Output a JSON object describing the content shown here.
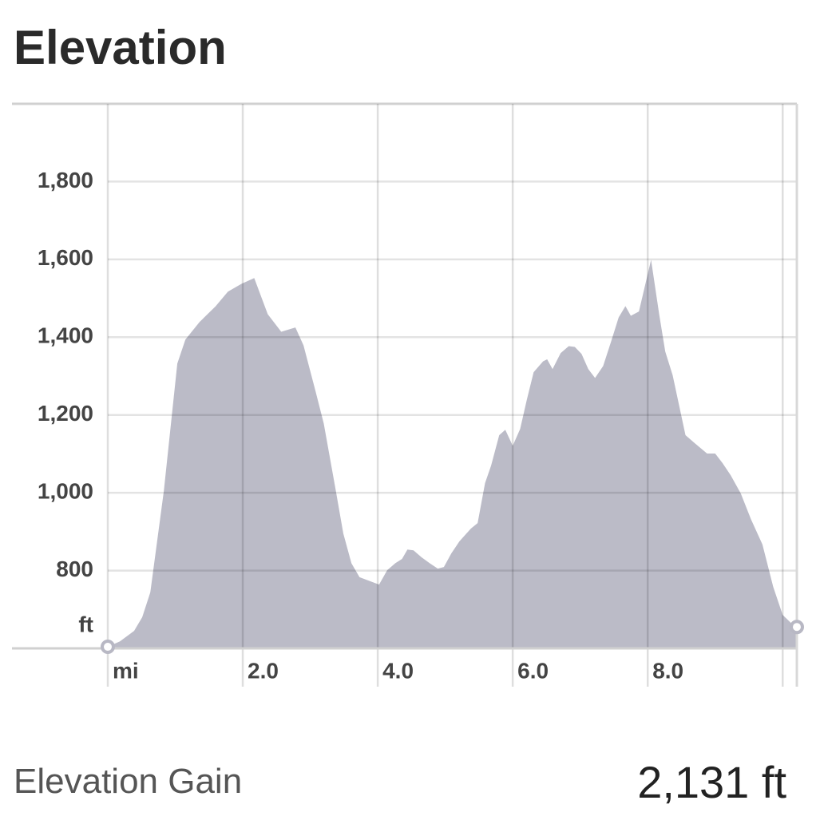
{
  "chart_data": {
    "type": "area",
    "title": "Elevation",
    "x_label": "mi",
    "y_label": "ft",
    "x": [
      0,
      0.18,
      0.39,
      0.51,
      0.63,
      0.83,
      1.03,
      1.15,
      1.36,
      1.6,
      1.78,
      1.98,
      2.17,
      2.37,
      2.57,
      2.78,
      2.9,
      3.08,
      3.2,
      3.37,
      3.49,
      3.61,
      3.73,
      4.02,
      4.14,
      4.26,
      4.36,
      4.44,
      4.53,
      4.65,
      4.77,
      4.89,
      4.98,
      5.09,
      5.21,
      5.38,
      5.48,
      5.59,
      5.68,
      5.8,
      5.89,
      6.0,
      6.11,
      6.21,
      6.31,
      6.45,
      6.51,
      6.59,
      6.71,
      6.83,
      6.92,
      7.02,
      7.12,
      7.22,
      7.34,
      7.46,
      7.57,
      7.67,
      7.75,
      7.87,
      8.05,
      8.17,
      8.26,
      8.37,
      8.56,
      8.7,
      8.88,
      9.0,
      9.11,
      9.23,
      9.38,
      9.53,
      9.7,
      9.86,
      10.0,
      10.12,
      10.21
    ],
    "y": [
      604,
      618,
      645,
      680,
      744,
      1004,
      1332,
      1394,
      1439,
      1480,
      1517,
      1537,
      1552,
      1459,
      1414,
      1425,
      1379,
      1260,
      1178,
      1014,
      895,
      819,
      783,
      764,
      801,
      819,
      830,
      854,
      852,
      834,
      819,
      805,
      809,
      844,
      875,
      908,
      922,
      1025,
      1070,
      1148,
      1162,
      1121,
      1164,
      1240,
      1310,
      1338,
      1343,
      1318,
      1359,
      1377,
      1375,
      1357,
      1318,
      1295,
      1326,
      1390,
      1451,
      1480,
      1455,
      1466,
      1599,
      1459,
      1363,
      1302,
      1148,
      1127,
      1101,
      1101,
      1076,
      1045,
      998,
      932,
      867,
      758,
      686,
      666,
      655
    ],
    "color": "#bbbbc7",
    "xlim": [
      0,
      10.21
    ],
    "ylim": [
      600,
      2000
    ],
    "xticks": [
      {
        "value": 0,
        "label": "mi"
      },
      {
        "value": 2,
        "label": "2.0"
      },
      {
        "value": 4,
        "label": "4.0"
      },
      {
        "value": 6,
        "label": "6.0"
      },
      {
        "value": 8,
        "label": "8.0"
      },
      {
        "value": 10,
        "label": null
      }
    ],
    "yticks": [
      {
        "value": 800,
        "label": "800"
      },
      {
        "value": 1000,
        "label": "1,000"
      },
      {
        "value": 1200,
        "label": "1,200"
      },
      {
        "value": 1400,
        "label": "1,400"
      },
      {
        "value": 1600,
        "label": "1,600"
      },
      {
        "value": 1800,
        "label": "1,800"
      }
    ],
    "grid": true
  },
  "summary": {
    "label": "Elevation Gain",
    "value": "2,131 ft"
  }
}
